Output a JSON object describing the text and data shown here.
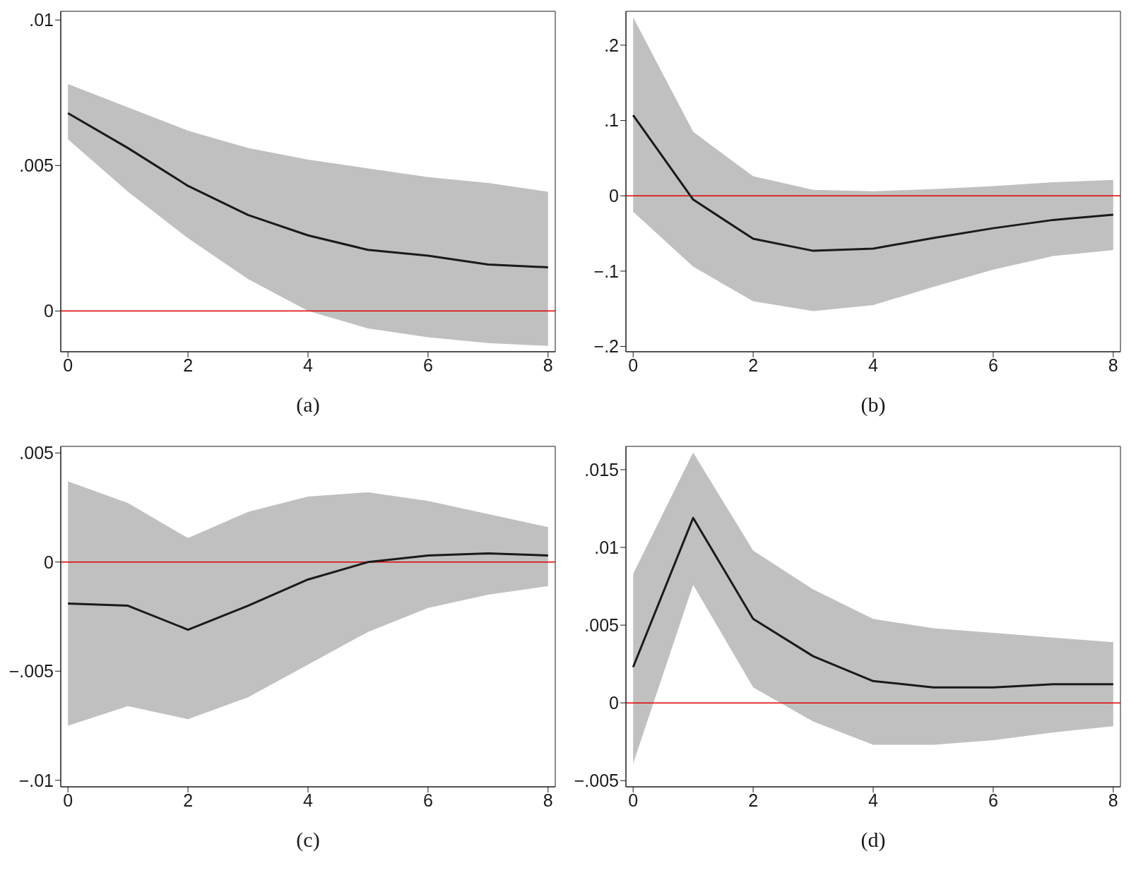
{
  "chart_data": [
    {
      "type": "line",
      "annotations": [
        "(a)"
      ],
      "x": [
        0,
        1,
        2,
        3,
        4,
        5,
        6,
        7,
        8
      ],
      "xlim": [
        -0.12,
        8.12
      ],
      "xticks": [
        0,
        2,
        4,
        6,
        8
      ],
      "ylim": [
        -0.0014,
        0.0103
      ],
      "yticks": [
        {
          "value": 0,
          "label": "0"
        },
        {
          "value": 0.005,
          "label": ".005"
        },
        {
          "value": 0.01,
          "label": ".01"
        }
      ],
      "ref_lines": [
        {
          "axis": "y",
          "value": 0,
          "color": "#e00000"
        }
      ],
      "series": [
        {
          "color": "#1a1a1a",
          "values": [
            0.0068,
            0.0056,
            0.0043,
            0.0033,
            0.0026,
            0.0021,
            0.0019,
            0.0016,
            0.0015
          ],
          "lower": [
            0.0059,
            0.0041,
            0.0025,
            0.0011,
            0.0,
            -0.0006,
            -0.0009,
            -0.0011,
            -0.0012
          ],
          "upper": [
            0.0078,
            0.007,
            0.0062,
            0.0056,
            0.0052,
            0.0049,
            0.0046,
            0.0044,
            0.0041
          ]
        }
      ]
    },
    {
      "type": "line",
      "annotations": [
        "(b)"
      ],
      "x": [
        0,
        1,
        2,
        3,
        4,
        5,
        6,
        7,
        8
      ],
      "xlim": [
        -0.12,
        8.12
      ],
      "xticks": [
        0,
        2,
        4,
        6,
        8
      ],
      "ylim": [
        -0.207,
        0.245
      ],
      "yticks": [
        {
          "value": -0.2,
          "label": "−.2"
        },
        {
          "value": -0.1,
          "label": "−.1"
        },
        {
          "value": 0,
          "label": "0"
        },
        {
          "value": 0.1,
          "label": ".1"
        },
        {
          "value": 0.2,
          "label": ".2"
        }
      ],
      "ref_lines": [
        {
          "axis": "y",
          "value": 0,
          "color": "#e00000"
        }
      ],
      "series": [
        {
          "color": "#1a1a1a",
          "values": [
            0.107,
            -0.005,
            -0.057,
            -0.073,
            -0.07,
            -0.056,
            -0.043,
            -0.032,
            -0.025
          ],
          "lower": [
            -0.021,
            -0.094,
            -0.14,
            -0.153,
            -0.145,
            -0.121,
            -0.098,
            -0.08,
            -0.072
          ],
          "upper": [
            0.237,
            0.085,
            0.026,
            0.008,
            0.006,
            0.009,
            0.013,
            0.018,
            0.021
          ]
        }
      ]
    },
    {
      "type": "line",
      "annotations": [
        "(c)"
      ],
      "x": [
        0,
        1,
        2,
        3,
        4,
        5,
        6,
        7,
        8
      ],
      "xlim": [
        -0.12,
        8.12
      ],
      "xticks": [
        0,
        2,
        4,
        6,
        8
      ],
      "ylim": [
        -0.0103,
        0.0053
      ],
      "yticks": [
        {
          "value": -0.01,
          "label": "−.01"
        },
        {
          "value": -0.005,
          "label": "−.005"
        },
        {
          "value": 0,
          "label": "0"
        },
        {
          "value": 0.005,
          "label": ".005"
        }
      ],
      "ref_lines": [
        {
          "axis": "y",
          "value": 0,
          "color": "#e00000"
        }
      ],
      "series": [
        {
          "color": "#1a1a1a",
          "values": [
            -0.0019,
            -0.002,
            -0.0031,
            -0.002,
            -0.0008,
            0.0,
            0.0003,
            0.0004,
            0.0003
          ],
          "lower": [
            -0.0075,
            -0.0066,
            -0.0072,
            -0.0062,
            -0.0047,
            -0.0032,
            -0.0021,
            -0.0015,
            -0.0011
          ],
          "upper": [
            0.0037,
            0.0027,
            0.0011,
            0.0023,
            0.003,
            0.0032,
            0.0028,
            0.0022,
            0.0016
          ]
        }
      ]
    },
    {
      "type": "line",
      "annotations": [
        "(d)"
      ],
      "x": [
        0,
        1,
        2,
        3,
        4,
        5,
        6,
        7,
        8
      ],
      "xlim": [
        -0.12,
        8.12
      ],
      "xticks": [
        0,
        2,
        4,
        6,
        8
      ],
      "ylim": [
        -0.0054,
        0.0165
      ],
      "yticks": [
        {
          "value": -0.005,
          "label": "−.005"
        },
        {
          "value": 0,
          "label": "0"
        },
        {
          "value": 0.005,
          "label": ".005"
        },
        {
          "value": 0.01,
          "label": ".01"
        },
        {
          "value": 0.015,
          "label": ".015"
        }
      ],
      "ref_lines": [
        {
          "axis": "y",
          "value": 0,
          "color": "#e00000"
        }
      ],
      "series": [
        {
          "color": "#1a1a1a",
          "values": [
            0.0023,
            0.0119,
            0.0054,
            0.003,
            0.0014,
            0.001,
            0.001,
            0.0012,
            0.0012
          ],
          "lower": [
            -0.0039,
            0.0076,
            0.001,
            -0.0012,
            -0.0027,
            -0.0027,
            -0.0024,
            -0.0019,
            -0.0015
          ],
          "upper": [
            0.0083,
            0.0161,
            0.0098,
            0.0073,
            0.0054,
            0.0048,
            0.0045,
            0.0042,
            0.0039
          ]
        }
      ]
    }
  ]
}
